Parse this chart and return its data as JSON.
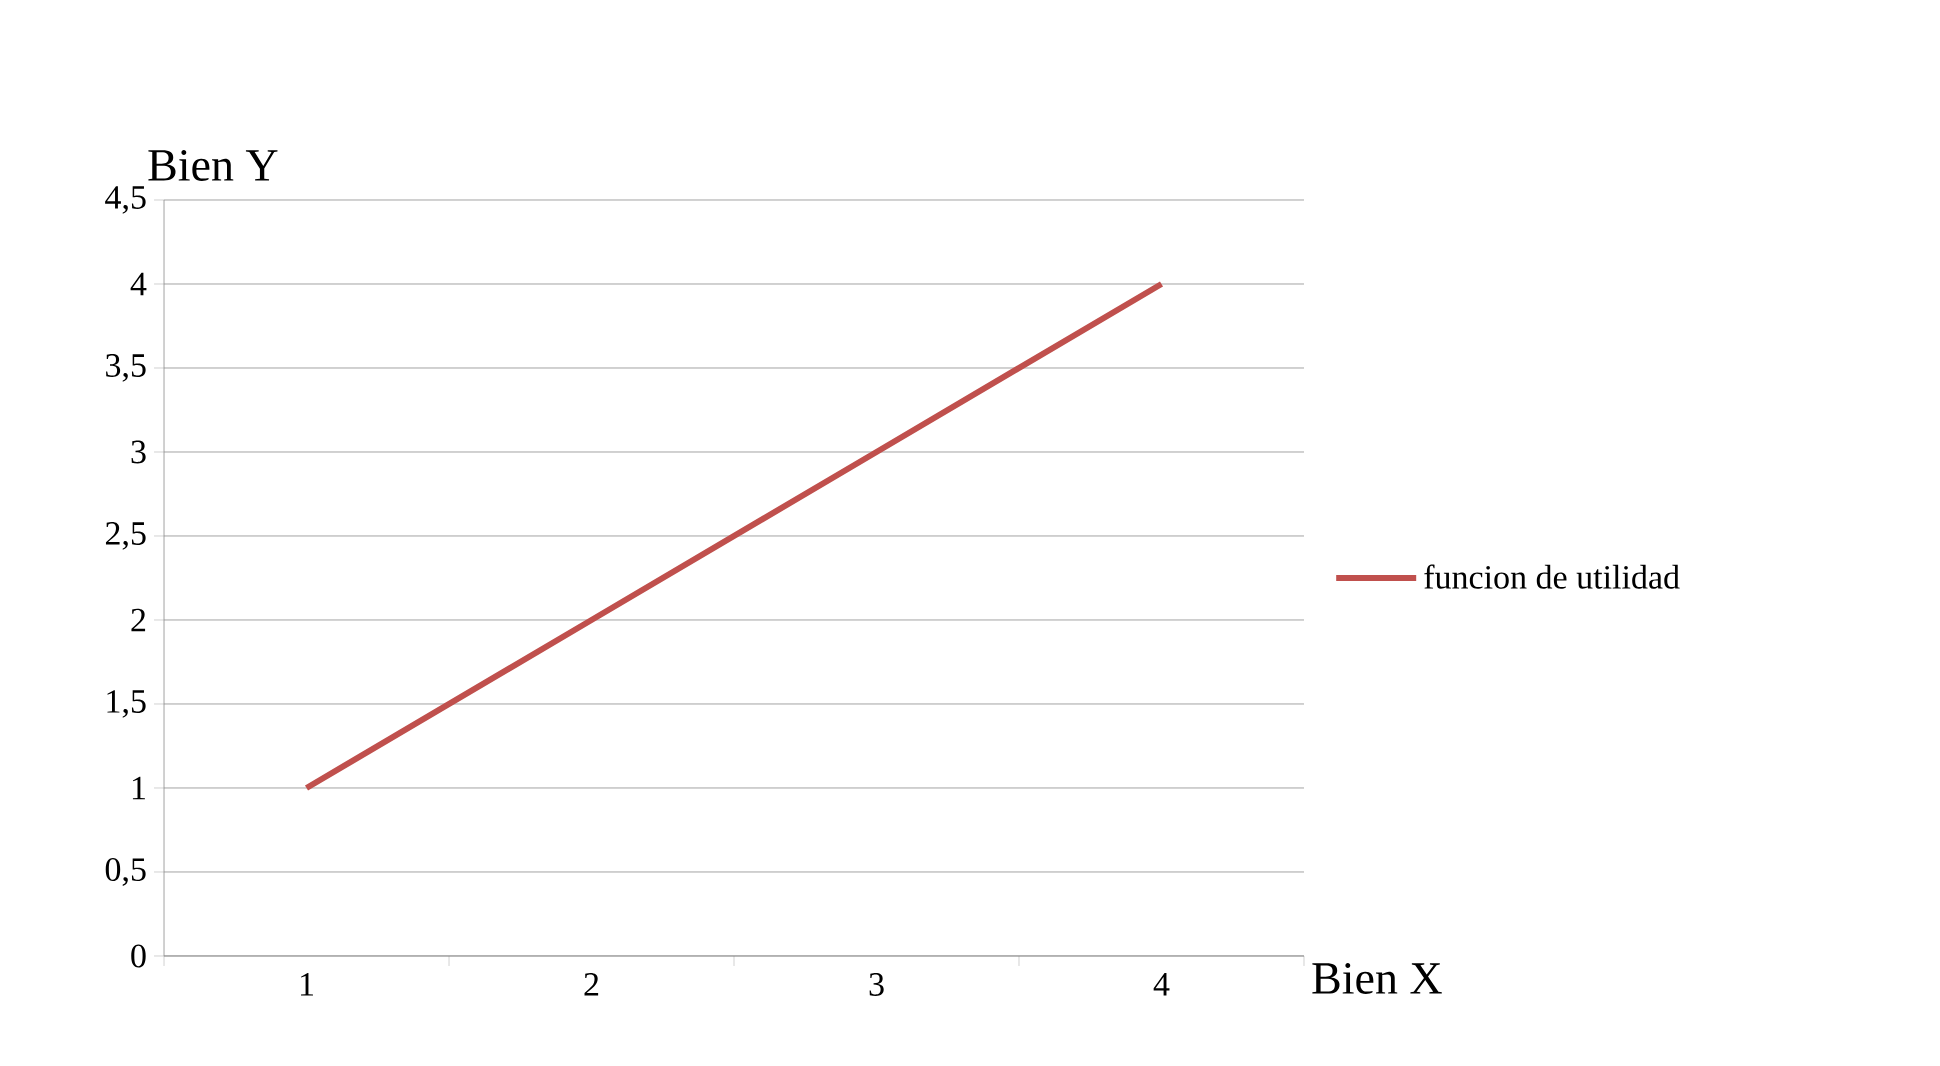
{
  "chart_data": {
    "type": "line",
    "xlabel": "Bien X",
    "ylabel": "Bien Y",
    "categories": [
      "1",
      "2",
      "3",
      "4"
    ],
    "series": [
      {
        "name": "funcion de utilidad",
        "color": "#c0504d",
        "values": [
          1,
          2,
          3,
          4
        ]
      }
    ],
    "ylim": [
      0,
      4.5
    ],
    "yticks": [
      0,
      {
        "value": 0.5,
        "label": "0,5"
      },
      1,
      {
        "value": 1.5,
        "label": "1,5"
      },
      2,
      {
        "value": 2.5,
        "label": "2,5"
      },
      3,
      {
        "value": 3.5,
        "label": "3,5"
      },
      4,
      {
        "value": 4.5,
        "label": "4,5"
      }
    ],
    "grid": "y",
    "legend": "right",
    "marker": "none",
    "line_style": "solid"
  }
}
